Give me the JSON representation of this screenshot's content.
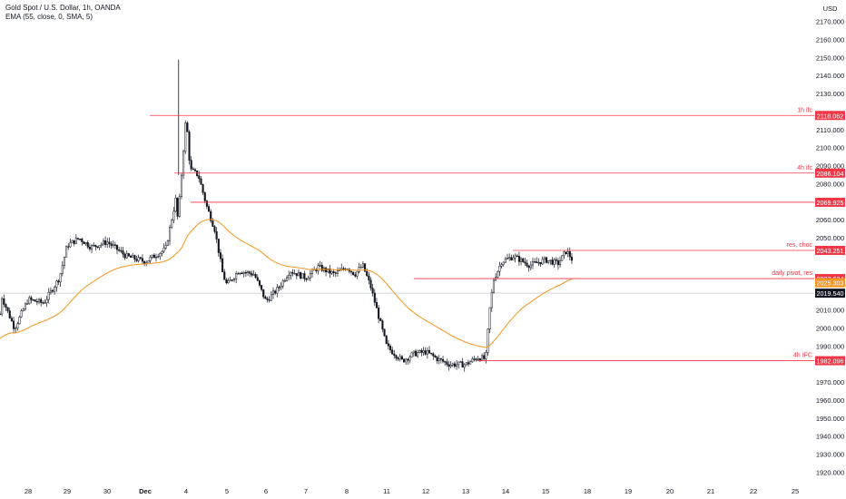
{
  "header": {
    "symbol_line": "Gold Spot / U.S. Dollar, 1h, OANDA",
    "indicator_line": "EMA (55, close, 0, SMA, 5)"
  },
  "chart_data": {
    "type": "candlestick",
    "currency_label": "USD",
    "y_axis": {
      "ylim": [
        1915,
        2175
      ],
      "ticks": [
        1920,
        1930,
        1940,
        1950,
        1960,
        1970,
        1980,
        1990,
        2000,
        2010,
        2020,
        2030,
        2040,
        2050,
        2060,
        2070,
        2080,
        2090,
        2100,
        2110,
        2120,
        2130,
        2140,
        2150,
        2160,
        2170
      ],
      "tick_labels": [
        "1920.000",
        "1930.000",
        "1940.000",
        "1950.000",
        "1960.000",
        "1970.000",
        "1980.000",
        "1990.000",
        "2000.000",
        "2010.000",
        "2020.000",
        "2030.000",
        "2040.000",
        "2050.000",
        "2060.000",
        "2070.000",
        "2080.000",
        "2090.000",
        "2100.000",
        "2110.000",
        "2120.000",
        "2130.000",
        "2140.000",
        "2150.000",
        "2160.000",
        "2170.000"
      ]
    },
    "x_axis": {
      "labels": [
        "28",
        "29",
        "30",
        "Dec",
        "4",
        "5",
        "6",
        "7",
        "8",
        "11",
        "12",
        "13",
        "14",
        "15",
        "18",
        "19",
        "20",
        "21",
        "22",
        "25"
      ]
    },
    "price_path": [
      {
        "d": "27",
        "p": 2015
      },
      {
        "d": "28",
        "p": 2016
      },
      {
        "d": "28.4",
        "p": 2014
      },
      {
        "d": "28.8",
        "p": 2028
      },
      {
        "d": "29",
        "p": 2046
      },
      {
        "d": "29.3",
        "p": 2050
      },
      {
        "d": "29.6",
        "p": 2045
      },
      {
        "d": "30",
        "p": 2048
      },
      {
        "d": "30.5",
        "p": 2040
      },
      {
        "d": "Dec",
        "p": 2037
      },
      {
        "d": "Dec.5",
        "p": 2044
      },
      {
        "d": "Dec.8",
        "p": 2060
      },
      {
        "d": "3.9",
        "p": 2072
      },
      {
        "d": "4",
        "p": 2118
      },
      {
        "d": "4.1",
        "p": 2088
      },
      {
        "d": "4.3",
        "p": 2085
      },
      {
        "d": "4.5",
        "p": 2068
      },
      {
        "d": "4.7",
        "p": 2055
      },
      {
        "d": "4.9",
        "p": 2030
      },
      {
        "d": "5",
        "p": 2024
      },
      {
        "d": "5.3",
        "p": 2032
      },
      {
        "d": "5.7",
        "p": 2030
      },
      {
        "d": "6",
        "p": 2015
      },
      {
        "d": "6.3",
        "p": 2022
      },
      {
        "d": "6.6",
        "p": 2032
      },
      {
        "d": "7",
        "p": 2028
      },
      {
        "d": "7.3",
        "p": 2034
      },
      {
        "d": "7.7",
        "p": 2030
      },
      {
        "d": "8",
        "p": 2034
      },
      {
        "d": "8.2",
        "p": 2030
      },
      {
        "d": "8.4",
        "p": 2035
      },
      {
        "d": "8.6",
        "p": 2023
      },
      {
        "d": "9",
        "p": 2008
      },
      {
        "d": "9.4",
        "p": 2000
      },
      {
        "d": "11",
        "p": 1990
      },
      {
        "d": "11.4",
        "p": 1982
      },
      {
        "d": "11.7",
        "p": 1986
      },
      {
        "d": "12",
        "p": 1987
      },
      {
        "d": "12.3",
        "p": 1983
      },
      {
        "d": "12.6",
        "p": 1980
      },
      {
        "d": "13",
        "p": 1980
      },
      {
        "d": "13.3",
        "p": 1984
      },
      {
        "d": "13.5",
        "p": 1983
      },
      {
        "d": "13.6",
        "p": 2010
      },
      {
        "d": "13.7",
        "p": 2027
      },
      {
        "d": "13.9",
        "p": 2037
      },
      {
        "d": "14.2",
        "p": 2040
      },
      {
        "d": "14.6",
        "p": 2035
      },
      {
        "d": "15",
        "p": 2038
      },
      {
        "d": "15.3",
        "p": 2036
      },
      {
        "d": "15.5",
        "p": 2043
      },
      {
        "d": "15.7",
        "p": 2036
      },
      {
        "d": "15.9",
        "p": 2025
      },
      {
        "d": "16",
        "p": 2020
      }
    ],
    "ema_label": "EMA 55",
    "ema_color": "#f7941d",
    "candle_up_color": "#ffffff",
    "candle_down_color": "#131722",
    "level_line_color": "#f23645",
    "levels": [
      {
        "value": 2118.062,
        "label": "2118.062",
        "note": "1h ifc",
        "start_day": "Dec"
      },
      {
        "value": 2086.104,
        "label": "2086.104",
        "note": "4h ifc",
        "start_day": "4"
      },
      {
        "value": 2069.925,
        "label": "2069.925",
        "note": "",
        "start_day": "4"
      },
      {
        "value": 2043.251,
        "label": "2043.251",
        "note": "res, choc",
        "start_day": "14"
      },
      {
        "value": 2027.624,
        "label": "2027.624",
        "note": "daily pivot, res",
        "start_day": "11"
      },
      {
        "value": 1982.096,
        "label": "1982.096",
        "note": "4h IFC",
        "start_day": "13"
      }
    ],
    "ema_last": {
      "value": 2025.303,
      "label": "2025.303"
    },
    "last_price": {
      "value": 2019.54,
      "label": "2019.540"
    }
  }
}
